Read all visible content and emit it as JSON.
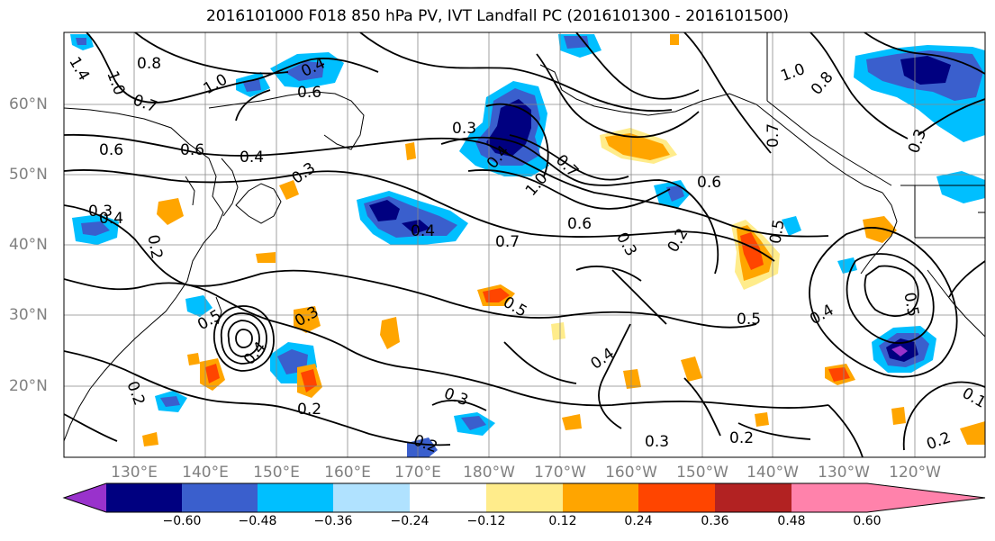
{
  "title": "2016101000 F018 850 hPa PV, IVT Landfall PC (2016101300 - 2016101500)",
  "lat_labels": [
    "60°N",
    "50°N",
    "40°N",
    "30°N",
    "20°N"
  ],
  "lon_labels": [
    "130°E",
    "140°E",
    "150°E",
    "160°E",
    "170°E",
    "180°W",
    "170°W",
    "160°W",
    "150°W",
    "140°W",
    "130°W",
    "120°W"
  ],
  "colorbar": {
    "colors": [
      "#9932cc",
      "#000080",
      "#3a5fcd",
      "#00bfff",
      "#b0e2ff",
      "#ffffff",
      "#ffec8b",
      "#ffa500",
      "#ff4500",
      "#b22222",
      "#ff82ab"
    ],
    "ticks": [
      "−0.60",
      "−0.48",
      "−0.36",
      "−0.24",
      "−0.12",
      "0.12",
      "0.24",
      "0.36",
      "0.48",
      "0.60"
    ]
  },
  "contour_labels": [
    "1.4",
    "0.8",
    "1.0",
    "1.0",
    "0.4",
    "0.7",
    "0.6",
    "0.6",
    "0.3",
    "0.4",
    "0.4",
    "0.6",
    "0.3",
    "0.4",
    "0.2",
    "0.3",
    "1.0",
    "0.7",
    "0.4",
    "0.7",
    "0.6",
    "0.5",
    "0.2",
    "0.3",
    "0.5",
    "0.6",
    "0.5",
    "0.5",
    "0.4",
    "0.2",
    "0.4",
    "0.3",
    "0.2",
    "0.3",
    "0.2",
    "0.3",
    "0.2",
    "1.0",
    "0.8",
    "0.7",
    "0.3",
    "0.5",
    "0.4",
    "0.1",
    "0.2"
  ]
}
